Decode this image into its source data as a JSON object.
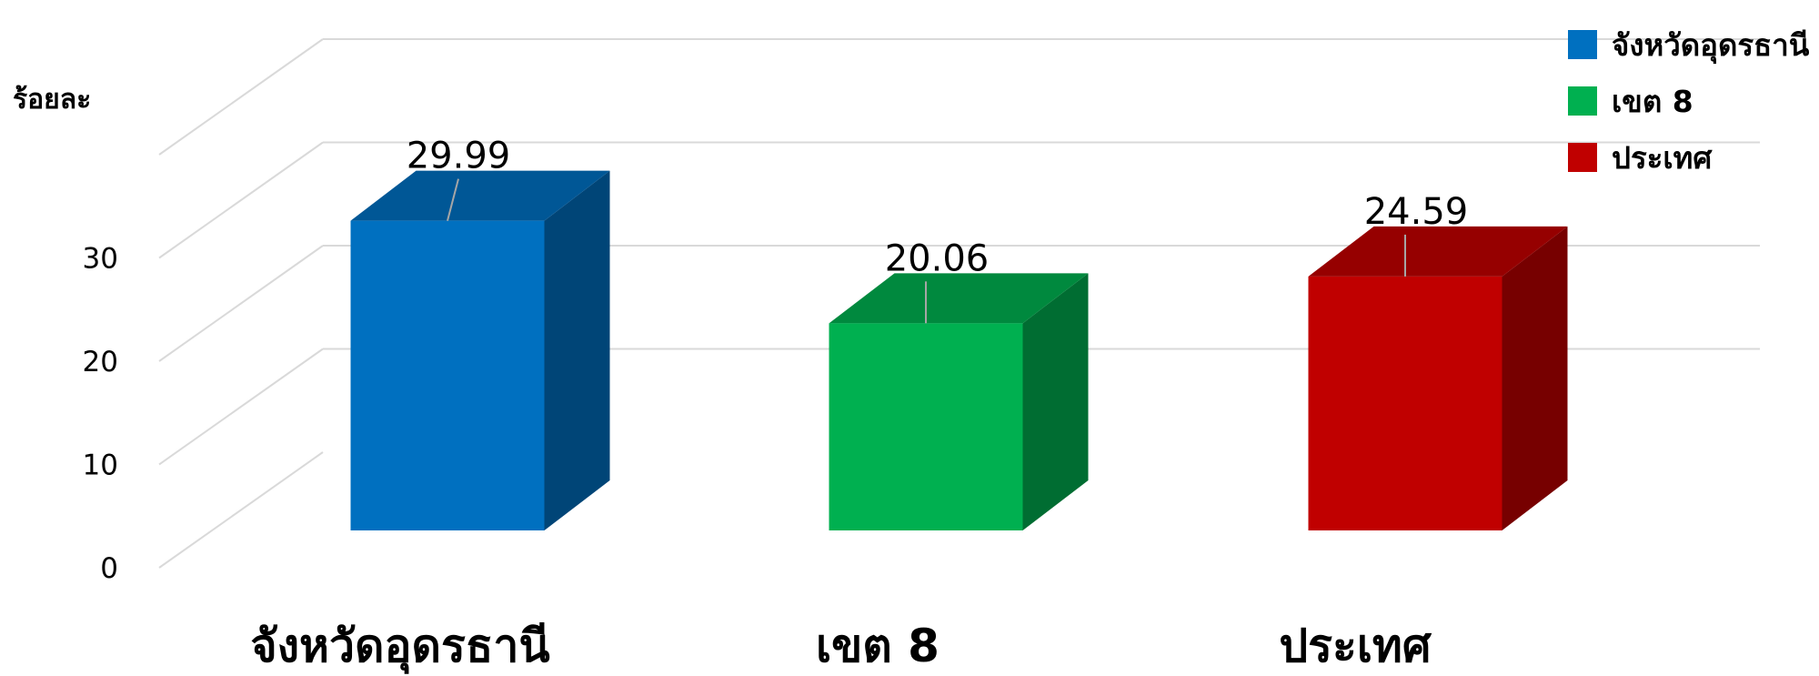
{
  "chart_data": {
    "type": "bar",
    "ylabel": "ร้อยละ",
    "categories": [
      "จังหวัดอุดรธานี",
      "เขต 8",
      "ประเทศ"
    ],
    "values": [
      29.99,
      20.06,
      24.59
    ],
    "value_labels": [
      "29.99",
      "20.06",
      "24.59"
    ],
    "colors": [
      "#0070C0",
      "#00B050",
      "#C00000"
    ],
    "ylim": [
      0,
      40
    ],
    "yticks": [
      0,
      10,
      20,
      30
    ],
    "grid": true,
    "style": "3d-column",
    "legend": {
      "placement": "top-right",
      "entries": [
        {
          "label": "จังหวัดอุดรธานี",
          "color": "#0070C0"
        },
        {
          "label": "เขต 8",
          "color": "#00B050"
        },
        {
          "label": "ประเทศ",
          "color": "#C00000"
        }
      ]
    }
  }
}
